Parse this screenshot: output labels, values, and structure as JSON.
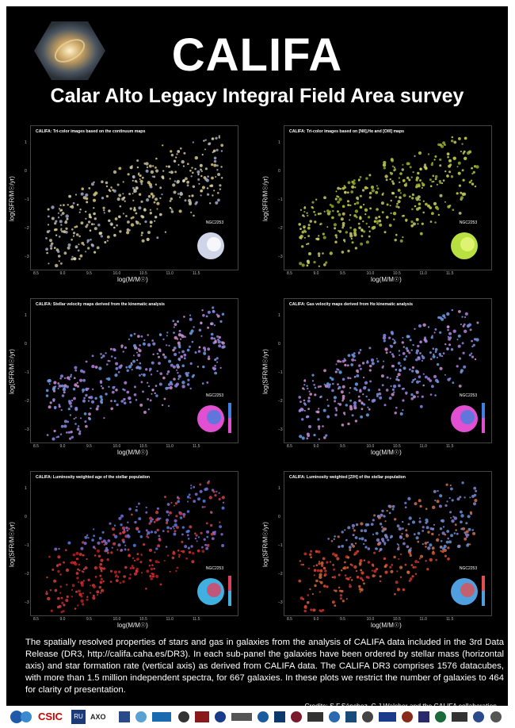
{
  "header": {
    "title": "CALIFA",
    "subtitle": "Calar Alto Legacy Integral Field Area survey"
  },
  "axes": {
    "xlabel": "log(M/M☉)",
    "ylabel": "log(SFR/M☉/yr)",
    "xticks": [
      "8.5",
      "9.0",
      "9.5",
      "10.0",
      "10.5",
      "11.0",
      "11.5"
    ],
    "yticks": [
      "1",
      "0",
      "−1",
      "−2",
      "−3"
    ]
  },
  "panels": [
    {
      "title": "CALIFA: Tri-color images based on the continuum maps",
      "inset_label": "NGC2253",
      "scheme": "continuum"
    },
    {
      "title": "CALIFA: Tri-color images based on [NII],Hα and [OIII] maps",
      "inset_label": "NGC2253",
      "scheme": "gas"
    },
    {
      "title": "CALIFA: Stellar velocity maps derived from the kinematic analysis",
      "inset_label": "NGC2253",
      "scheme": "velocity"
    },
    {
      "title": "CALIFA: Gas velocity maps derived from Hα kinematic analysis",
      "inset_label": "NGC2253",
      "scheme": "velocity"
    },
    {
      "title": "CALIFA: Luminosity weighted age of the stellar population",
      "inset_label": "NGC2253",
      "scheme": "age"
    },
    {
      "title": "CALIFA: Luminosity weighted [Z/H] of the stellar population",
      "inset_label": "NGC2253",
      "scheme": "metal"
    }
  ],
  "caption": "The spatially resolved properties of stars and gas in galaxies from the analysis of CALIFA data included in the 3rd Data Release (DR3, http://califa.caha.es/DR3). In each sub-panel the galaxies have been ordered by stellar mass (horizontal axis) and star formation rate (vertical axis) as derived from CALIFA data. The CALIFA DR3 comprises 1576 datacubes, with more than 1.5 million independent spectra, for 667 galaxies. In these plots we restrict the number of galaxies to 464 for clarity of presentation.",
  "credits": "Credits: S.F.Sánchez, C.J.Walcher and the CALIFA collaboration",
  "logos": [
    "CSIC",
    "RU",
    "AXO"
  ]
}
